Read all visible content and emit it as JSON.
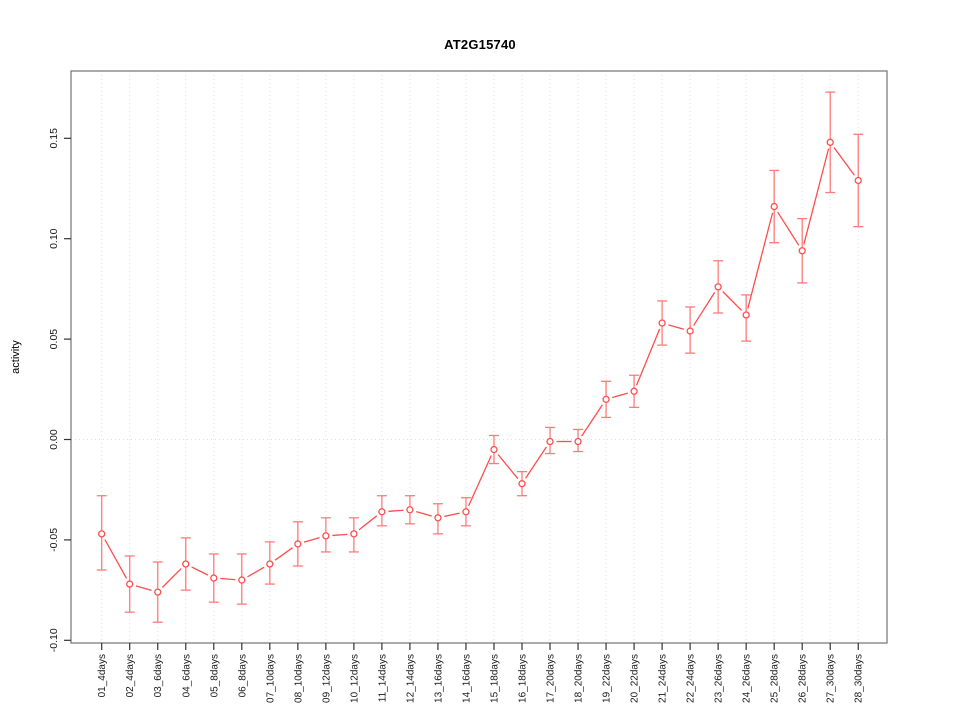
{
  "figure": {
    "background": "#ffffff"
  },
  "chart_data": {
    "type": "line",
    "title": "AT2G15740",
    "xlabel": "",
    "ylabel": "activity",
    "legend": "none",
    "grid": {
      "vertical_gridlines": true,
      "horizontal_zero_line": true,
      "style": "dotted"
    },
    "ylim": [
      -0.101,
      0.184
    ],
    "ytick_values": [
      0.15,
      0.1,
      0.05,
      0.0,
      -0.05,
      -0.1
    ],
    "ytick_labels": [
      "0.15",
      "0.10",
      "0.05",
      "0.00",
      "-0.05",
      "-0.10"
    ],
    "categories": [
      "01_4days",
      "02_4days",
      "03_6days",
      "04_6days",
      "05_8days",
      "06_8days",
      "07_10days",
      "08_10days",
      "09_12days",
      "10_12days",
      "11_14days",
      "12_14days",
      "13_16days",
      "14_16days",
      "15_18days",
      "16_18days",
      "17_20days",
      "18_20days",
      "19_22days",
      "20_22days",
      "21_24days",
      "22_24days",
      "23_26days",
      "24_26days",
      "25_28days",
      "26_28days",
      "27_30days",
      "28_30days"
    ],
    "series": [
      {
        "name": "activity",
        "marker": "open-circle",
        "values": [
          -0.047,
          -0.072,
          -0.076,
          -0.062,
          -0.069,
          -0.07,
          -0.062,
          -0.052,
          -0.048,
          -0.047,
          -0.036,
          -0.035,
          -0.039,
          -0.036,
          -0.005,
          -0.022,
          -0.001,
          -0.001,
          0.02,
          0.024,
          0.058,
          0.054,
          0.076,
          0.062,
          0.116,
          0.094,
          0.148,
          0.129
        ],
        "error_upper": [
          -0.028,
          -0.058,
          -0.061,
          -0.049,
          -0.057,
          -0.057,
          -0.051,
          -0.041,
          -0.039,
          -0.039,
          -0.028,
          -0.028,
          -0.032,
          -0.029,
          0.002,
          -0.016,
          0.006,
          0.005,
          0.029,
          0.032,
          0.069,
          0.066,
          0.089,
          0.072,
          0.134,
          0.11,
          0.173,
          0.152
        ],
        "error_lower": [
          -0.065,
          -0.086,
          -0.091,
          -0.075,
          -0.081,
          -0.082,
          -0.072,
          -0.063,
          -0.056,
          -0.056,
          -0.043,
          -0.042,
          -0.047,
          -0.043,
          -0.012,
          -0.028,
          -0.007,
          -0.006,
          0.011,
          0.016,
          0.047,
          0.043,
          0.063,
          0.049,
          0.098,
          0.078,
          0.123,
          0.106
        ]
      }
    ],
    "colors": {
      "line": "#ff4d4d",
      "point_stroke": "#ff4d4d",
      "point_fill": "#ffffff",
      "error_bar": "#ff7a7a",
      "grid": "#e0e0e0",
      "plot_border": "#737373",
      "tick": "#333333",
      "text": "#1a1a1a"
    }
  }
}
